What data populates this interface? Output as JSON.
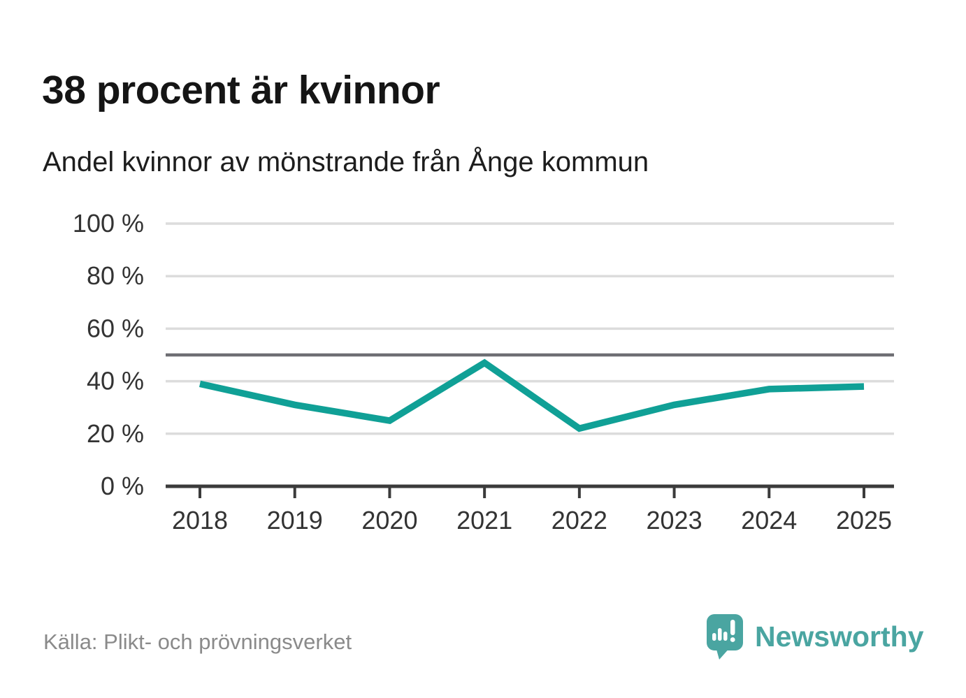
{
  "title": "38 procent är kvinnor",
  "subtitle": "Andel kvinnor av mönstrande från Ånge kommun",
  "source": "Källa: Plikt- och prövningsverket",
  "branding": {
    "name": "Newsworthy",
    "icon": "newsworthy-speech-bubble-barchart-icon"
  },
  "colors": {
    "line": "#10a096",
    "grid": "#dcdcdc",
    "reference_line": "#6e6e73",
    "axis": "#3b3b3b",
    "tick_text": "#333333",
    "brand": "#4aa5a1",
    "background": "#ffffff"
  },
  "chart_data": {
    "type": "line",
    "title": "38 procent är kvinnor",
    "subtitle": "Andel kvinnor av mönstrande från Ånge kommun",
    "x": [
      2018,
      2019,
      2020,
      2021,
      2022,
      2023,
      2024,
      2025
    ],
    "series": [
      {
        "name": "Andel kvinnor av mönstrande",
        "values": [
          39,
          31,
          25,
          47,
          22,
          31,
          37,
          38
        ]
      }
    ],
    "unit": "%",
    "ylim": [
      0,
      100
    ],
    "yticks": [
      0,
      20,
      40,
      60,
      80,
      100
    ],
    "ytick_suffix": " %",
    "reference_line": 50,
    "grid": true,
    "legend_position": "none",
    "xlabel": "",
    "ylabel": ""
  }
}
